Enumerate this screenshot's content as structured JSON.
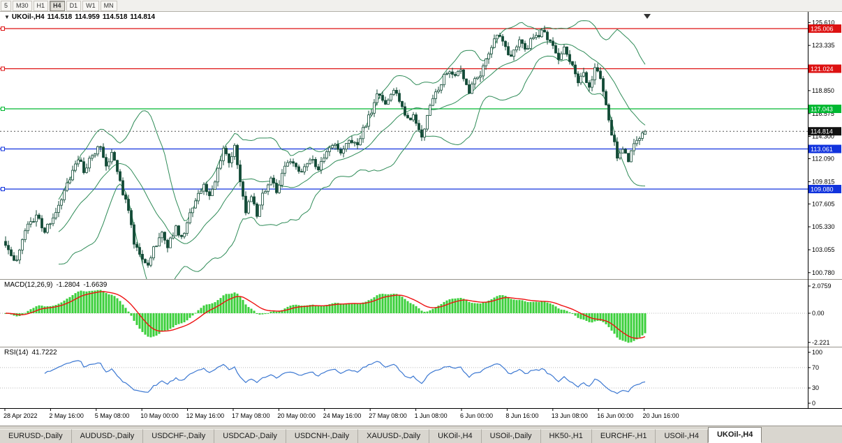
{
  "toolbar": {
    "periods": [
      "5",
      "M30",
      "H1",
      "H4",
      "D1",
      "W1",
      "MN"
    ],
    "active_period": "H4"
  },
  "chart_title": {
    "symbol": "UKOil-,H4",
    "open": "114.518",
    "high": "114.959",
    "low": "114.518",
    "close": "114.814"
  },
  "macd": {
    "label": "MACD(12,26,9)",
    "value_main": "-1.2804",
    "value_signal": "-1.6639",
    "axis": [
      "2.0759",
      "0.00",
      "-2.221"
    ]
  },
  "rsi": {
    "label": "RSI(14)",
    "value": "41.7222",
    "axis": [
      "100",
      "70",
      "30",
      "0"
    ],
    "levels": [
      70,
      30
    ]
  },
  "tabs": {
    "items": [
      "EURUSD-,Daily",
      "AUDUSD-,Daily",
      "USDCHF-,Daily",
      "USDCAD-,Daily",
      "USDCNH-,Daily",
      "XAUUSD-,Daily",
      "UKOil-,H4",
      "USOil-,Daily",
      "HK50-,H1",
      "EURCHF-,H1",
      "USOil-,H4",
      "UKOil-,H4"
    ],
    "active_index": 11
  },
  "colors": {
    "background": "#ffffff",
    "candle_border": "#124a36",
    "candle_bull": "#ffffff",
    "candle_bear": "#124a36",
    "bollinger": "#2e8b57",
    "macd_histogram": "#3bcf3b",
    "macd_signal": "#ee1111",
    "rsi_line": "#3c78d2",
    "level_red": "#dd1111",
    "level_green": "#00b832",
    "level_blue": "#1133dd",
    "current_price_badge": "#111111",
    "axis_text": "#000000"
  },
  "chart_data": {
    "type": "candlestick",
    "symbol": "UKOil-",
    "timeframe": "H4",
    "candle_count": 230,
    "ohlc_last": {
      "open": 114.518,
      "high": 114.959,
      "low": 114.518,
      "close": 114.814
    },
    "current_price": 114.814,
    "y_ticks": [
      "125.610",
      "123.335",
      "118.850",
      "116.575",
      "114.300",
      "112.090",
      "109.815",
      "107.605",
      "105.330",
      "103.055",
      "100.780"
    ],
    "x_labels": [
      "28 Apr 2022",
      "2 May 16:00",
      "5 May 08:00",
      "10 May 00:00",
      "12 May 16:00",
      "17 May 08:00",
      "20 May 00:00",
      "24 May 16:00",
      "27 May 08:00",
      "1 Jun 08:00",
      "6 Jun 00:00",
      "8 Jun 16:00",
      "13 Jun 08:00",
      "16 Jun 00:00",
      "20 Jun 16:00"
    ],
    "lines": [
      {
        "price": 125.006,
        "color": "#dd1111"
      },
      {
        "price": 121.024,
        "color": "#dd1111"
      },
      {
        "price": 117.043,
        "color": "#00b832"
      },
      {
        "price": 113.061,
        "color": "#1133dd"
      },
      {
        "price": 109.08,
        "color": "#1133dd"
      }
    ],
    "badges": [
      {
        "label": "125.006",
        "price": 125.006,
        "color": "#dd1111"
      },
      {
        "label": "121.024",
        "price": 121.024,
        "color": "#dd1111"
      },
      {
        "label": "117.043",
        "price": 117.043,
        "color": "#00b832"
      },
      {
        "label": "114.814",
        "price": 114.814,
        "color": "#111111"
      },
      {
        "label": "113.061",
        "price": 113.061,
        "color": "#1133dd"
      },
      {
        "label": "109.080",
        "price": 109.08,
        "color": "#1133dd"
      }
    ],
    "close_waypoints": [
      [
        0,
        103.8
      ],
      [
        2,
        102.4
      ],
      [
        4,
        102.1
      ],
      [
        7,
        105.2
      ],
      [
        11,
        106.4
      ],
      [
        14,
        104.9
      ],
      [
        16,
        105.8
      ],
      [
        19,
        107.6
      ],
      [
        23,
        110.3
      ],
      [
        26,
        112.2
      ],
      [
        28,
        110.8
      ],
      [
        31,
        112.5
      ],
      [
        34,
        113.5
      ],
      [
        36,
        111.4
      ],
      [
        38,
        112.7
      ],
      [
        41,
        109.7
      ],
      [
        44,
        106.8
      ],
      [
        46,
        103.9
      ],
      [
        48,
        102.6
      ],
      [
        51,
        101.3
      ],
      [
        53,
        103.1
      ],
      [
        56,
        104.8
      ],
      [
        58,
        103.3
      ],
      [
        61,
        105.4
      ],
      [
        63,
        104.1
      ],
      [
        65,
        105.8
      ],
      [
        68,
        107.9
      ],
      [
        71,
        109.4
      ],
      [
        73,
        108.2
      ],
      [
        76,
        111.0
      ],
      [
        78,
        113.2
      ],
      [
        80,
        111.7
      ],
      [
        82,
        113.4
      ],
      [
        84,
        109.9
      ],
      [
        86,
        106.9
      ],
      [
        88,
        108.6
      ],
      [
        90,
        106.3
      ],
      [
        92,
        108.4
      ],
      [
        95,
        109.9
      ],
      [
        97,
        108.9
      ],
      [
        100,
        111.2
      ],
      [
        103,
        111.9
      ],
      [
        106,
        110.7
      ],
      [
        109,
        112.2
      ],
      [
        112,
        111.1
      ],
      [
        114,
        112.4
      ],
      [
        117,
        113.6
      ],
      [
        120,
        112.7
      ],
      [
        123,
        114.1
      ],
      [
        126,
        113.5
      ],
      [
        129,
        115.6
      ],
      [
        131,
        116.8
      ],
      [
        133,
        118.7
      ],
      [
        136,
        117.5
      ],
      [
        139,
        119.0
      ],
      [
        142,
        117.0
      ],
      [
        144,
        115.9
      ],
      [
        146,
        116.4
      ],
      [
        148,
        114.9
      ],
      [
        149,
        114.2
      ],
      [
        151,
        116.4
      ],
      [
        153,
        118.3
      ],
      [
        156,
        119.6
      ],
      [
        158,
        120.8
      ],
      [
        161,
        120.2
      ],
      [
        163,
        120.9
      ],
      [
        166,
        118.7
      ],
      [
        168,
        119.8
      ],
      [
        170,
        120.6
      ],
      [
        172,
        122.2
      ],
      [
        174,
        123.3
      ],
      [
        176,
        124.4
      ],
      [
        178,
        123.5
      ],
      [
        181,
        122.2
      ],
      [
        184,
        123.7
      ],
      [
        186,
        122.9
      ],
      [
        189,
        124.1
      ],
      [
        192,
        124.7
      ],
      [
        195,
        123.7
      ],
      [
        198,
        121.8
      ],
      [
        200,
        123.2
      ],
      [
        203,
        121.3
      ],
      [
        205,
        119.7
      ],
      [
        207,
        120.8
      ],
      [
        209,
        119.0
      ],
      [
        211,
        121.0
      ],
      [
        213,
        120.1
      ],
      [
        215,
        117.4
      ],
      [
        217,
        114.6
      ],
      [
        219,
        112.4
      ],
      [
        221,
        113.3
      ],
      [
        223,
        111.9
      ],
      [
        225,
        113.5
      ],
      [
        227,
        114.4
      ],
      [
        229,
        114.814
      ]
    ],
    "indicators": [
      {
        "name": "Bollinger Bands",
        "period": 20,
        "deviation": 2
      },
      {
        "name": "MACD",
        "fast": 12,
        "slow": 26,
        "signal": 9
      },
      {
        "name": "RSI",
        "period": 14
      }
    ]
  }
}
